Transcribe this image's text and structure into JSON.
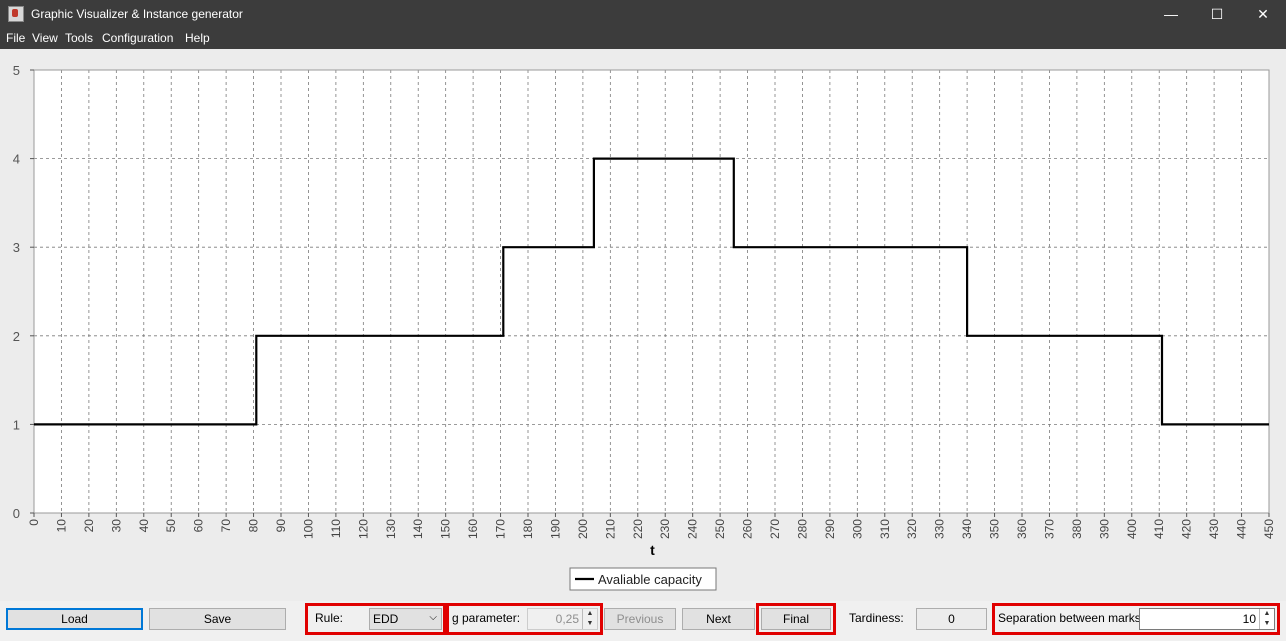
{
  "window": {
    "title": "Graphic Visualizer & Instance generator",
    "minimize": "—",
    "maximize": "☐",
    "close": "✕"
  },
  "menu": [
    "File",
    "View",
    "Tools",
    "Configuration",
    "Help"
  ],
  "chart_data": {
    "type": "line",
    "step": true,
    "xlabel": "t",
    "ylabel": "",
    "xlim": [
      0,
      450
    ],
    "ylim": [
      0,
      5
    ],
    "x_ticks": [
      0,
      10,
      20,
      30,
      40,
      50,
      60,
      70,
      80,
      90,
      100,
      110,
      120,
      130,
      140,
      150,
      160,
      170,
      180,
      190,
      200,
      210,
      220,
      230,
      240,
      250,
      260,
      270,
      280,
      290,
      300,
      310,
      320,
      330,
      340,
      350,
      360,
      370,
      380,
      390,
      400,
      410,
      420,
      430,
      440,
      450
    ],
    "y_ticks": [
      0,
      1,
      2,
      3,
      4,
      5
    ],
    "grid": true,
    "legend_position": "bottom-center",
    "series": [
      {
        "name": "Avaliable capacity",
        "color": "#000000",
        "x": [
          0,
          81,
          81,
          171,
          171,
          204,
          204,
          255,
          255,
          340,
          340,
          411,
          411,
          450
        ],
        "y": [
          1,
          1,
          2,
          2,
          3,
          3,
          4,
          4,
          3,
          3,
          2,
          2,
          1,
          1
        ]
      }
    ]
  },
  "controls": {
    "load_label": "Load",
    "save_label": "Save",
    "rule_label": "Rule:",
    "rule_value": "EDD",
    "g_label": "g parameter:",
    "g_value": "0,25",
    "previous_label": "Previous",
    "next_label": "Next",
    "final_label": "Final",
    "tardiness_label": "Tardiness:",
    "tardiness_value": "0",
    "separation_label": "Separation between marks:",
    "separation_value": "10"
  },
  "colors": {
    "titlebar": "#3c3c3c",
    "highlight": "#e00000",
    "focus": "#0078d7"
  }
}
